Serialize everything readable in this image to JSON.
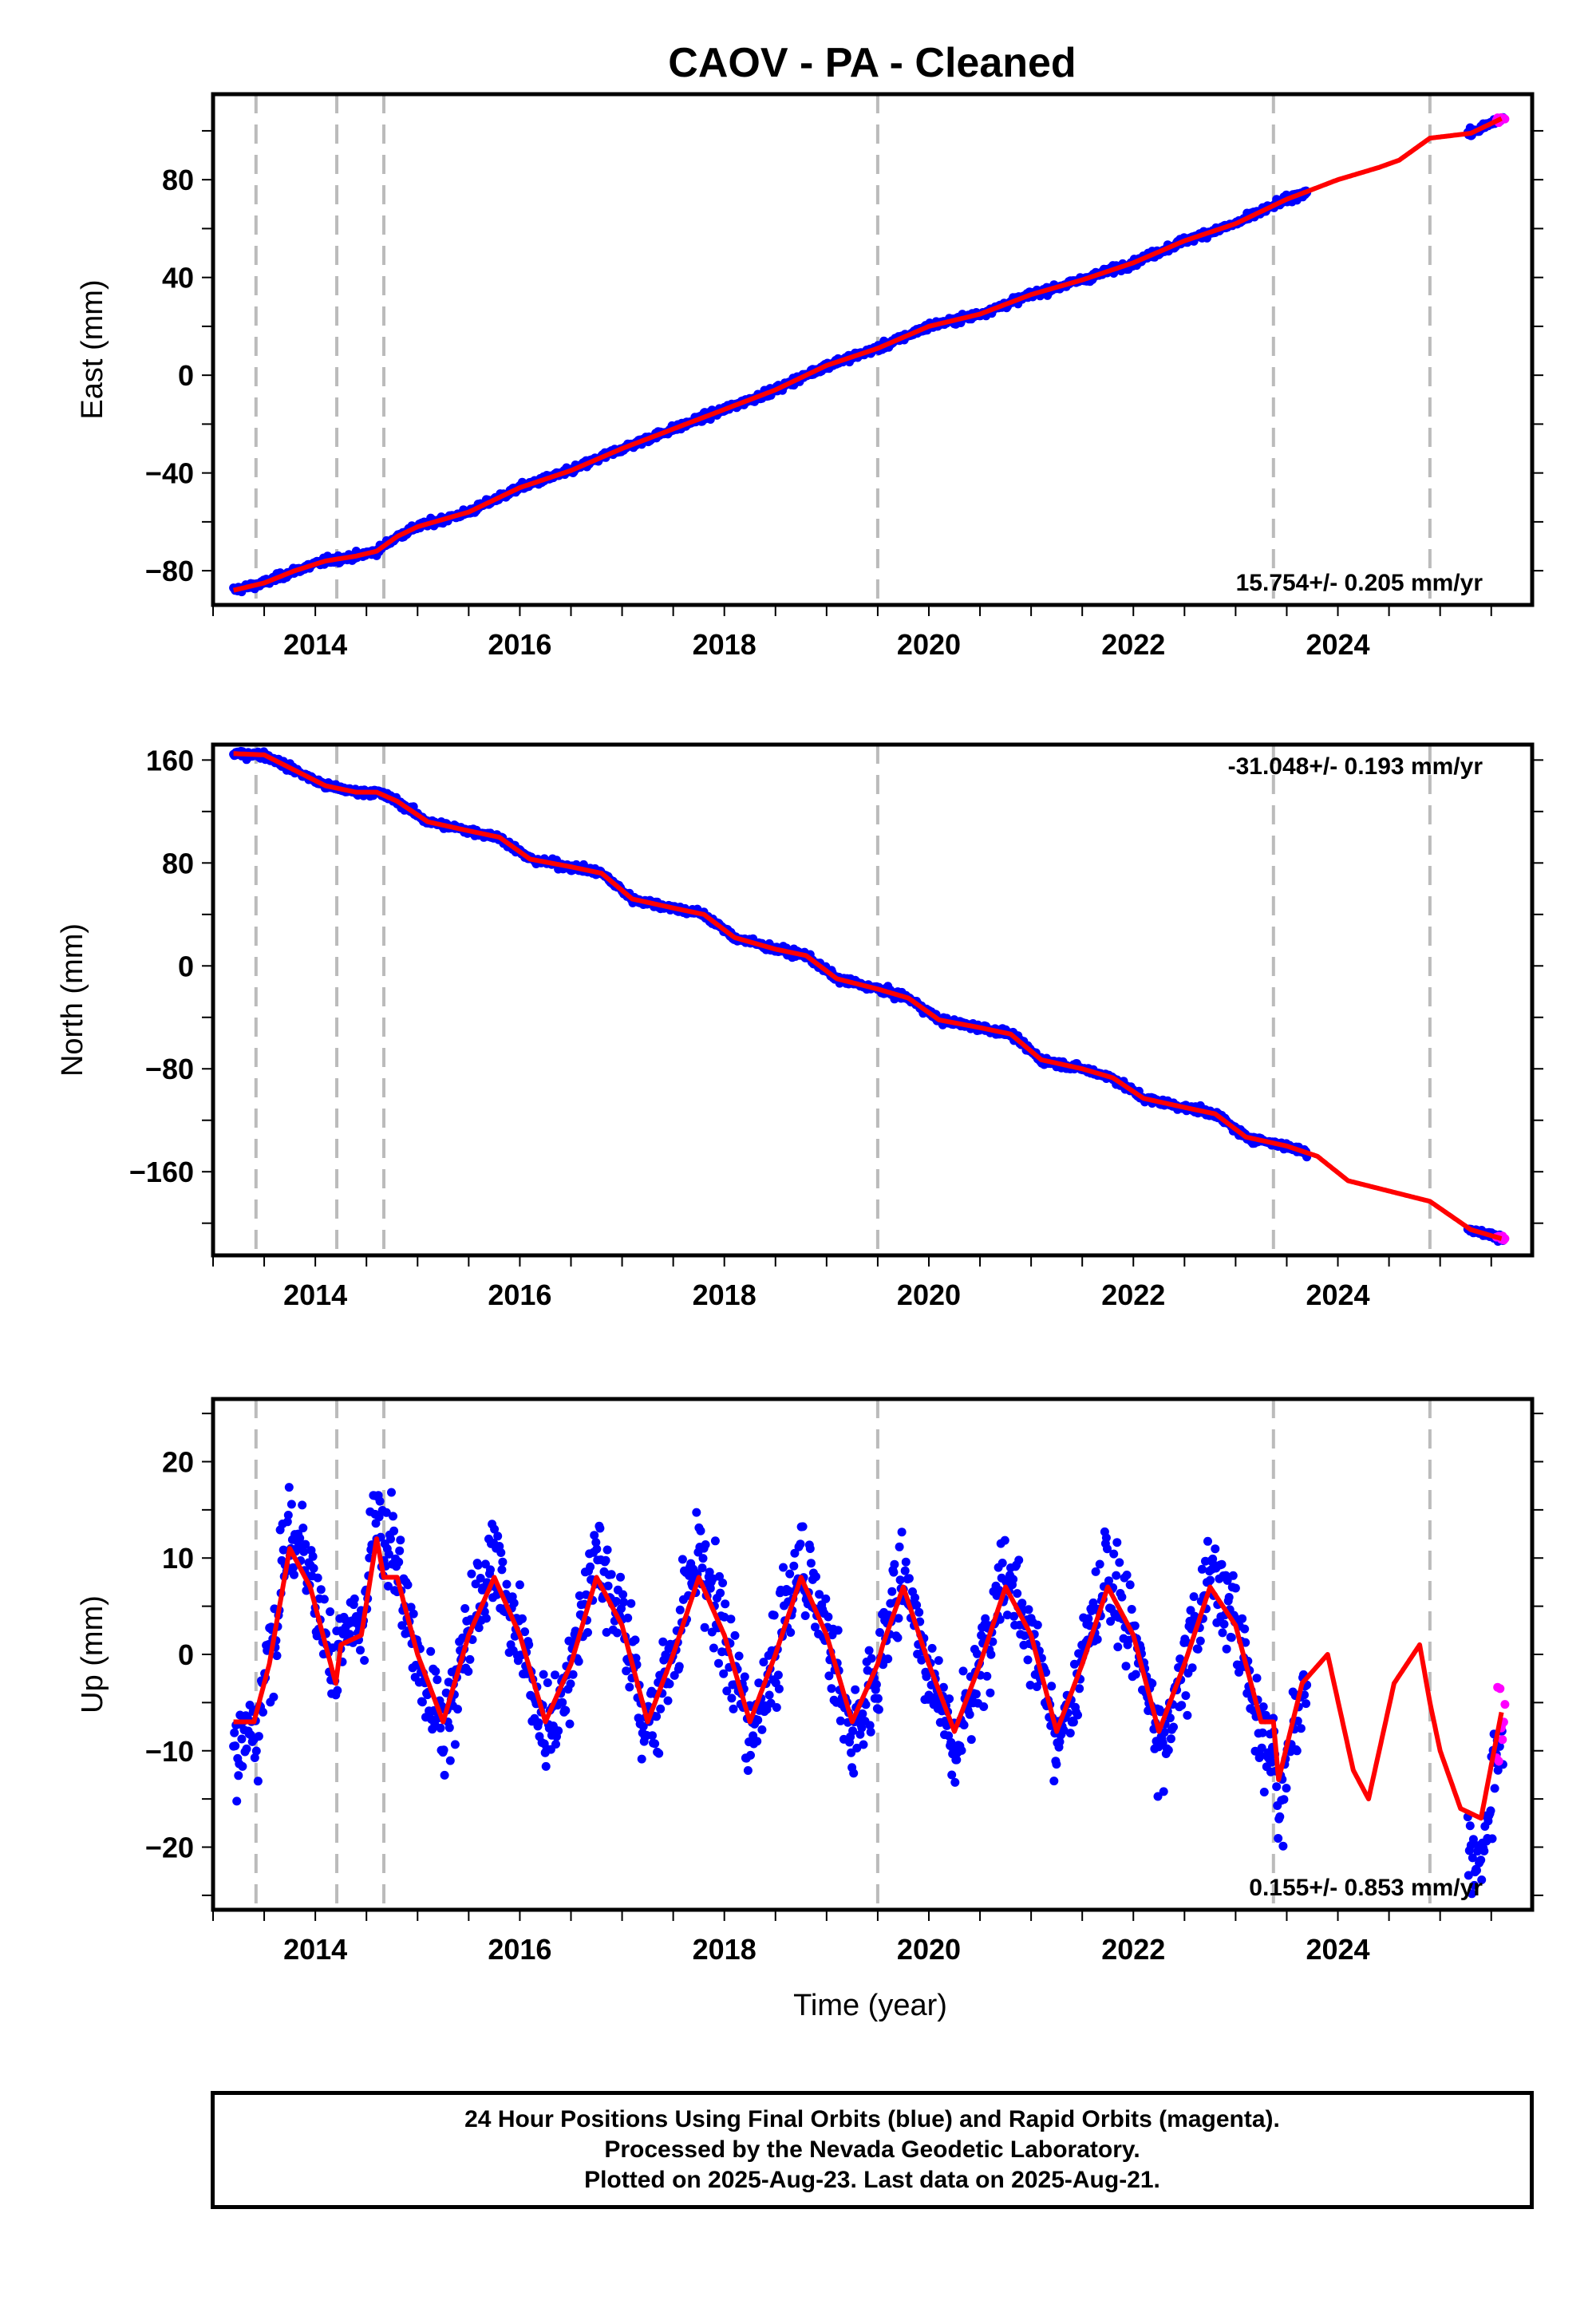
{
  "title": "CAOV  - PA - Cleaned",
  "footer": {
    "line1": "24 Hour Positions Using Final Orbits (blue) and Rapid Orbits (magenta).",
    "line2": "Processed by the Nevada Geodetic Laboratory.",
    "line3": "Plotted on 2025-Aug-23. Last data on 2025-Aug-21."
  },
  "colors": {
    "final_orbits": "#0000ff",
    "rapid_orbits": "#ff00ff",
    "model_fit": "#ff0000",
    "equipment_change_lines": "#bbbbbb"
  },
  "chart_data": [
    {
      "type": "scatter",
      "component": "East",
      "ylabel": "East (mm)",
      "xlabel": "",
      "xlim": [
        2013.0,
        2025.9
      ],
      "ylim": [
        -94,
        115
      ],
      "x_ticks": [
        2014,
        2016,
        2018,
        2020,
        2022,
        2024
      ],
      "y_ticks": [
        -80,
        -40,
        0,
        40,
        80
      ],
      "rate_label": "15.754+/- 0.205 mm/yr",
      "rate_position": "bottom-right",
      "equipment_changes": [
        2013.42,
        2014.21,
        2014.67,
        2019.5,
        2023.37,
        2024.9
      ],
      "final_orbits_range": [
        2013.2,
        2023.7
      ],
      "final_orbits_extra_range": [
        2025.27,
        2025.62
      ],
      "rapid_orbits_range": [
        2025.55,
        2025.64
      ],
      "fit_line": {
        "x": [
          2013.2,
          2013.5,
          2013.8,
          2014.1,
          2014.4,
          2014.6,
          2014.8,
          2015.0,
          2015.5,
          2016.0,
          2016.5,
          2017.0,
          2017.5,
          2018.0,
          2018.5,
          2019.0,
          2019.5,
          2020.0,
          2020.5,
          2021.0,
          2021.5,
          2022.0,
          2022.5,
          2023.0,
          2023.5,
          2024.0,
          2024.4,
          2024.6,
          2024.9,
          2025.3,
          2025.6
        ],
        "y": [
          -88,
          -85,
          -80,
          -76,
          -74,
          -72,
          -66,
          -62,
          -56,
          -46,
          -39,
          -30,
          -22,
          -14,
          -6,
          4,
          11,
          20,
          25,
          33,
          39,
          46,
          55,
          62,
          72,
          80,
          85,
          88,
          97,
          99,
          105
        ]
      }
    },
    {
      "type": "scatter",
      "component": "North",
      "ylabel": "North (mm)",
      "xlabel": "",
      "xlim": [
        2013.0,
        2025.9
      ],
      "ylim": [
        -225,
        172
      ],
      "x_ticks": [
        2014,
        2016,
        2018,
        2020,
        2022,
        2024
      ],
      "y_ticks": [
        -160,
        -80,
        0,
        80,
        160
      ],
      "rate_label": "-31.048+/- 0.193 mm/yr",
      "rate_position": "top-right",
      "equipment_changes": [
        2013.42,
        2014.21,
        2014.67,
        2019.5,
        2023.37,
        2024.9
      ],
      "final_orbits_range": [
        2013.2,
        2023.7
      ],
      "final_orbits_extra_range": [
        2025.27,
        2025.62
      ],
      "rapid_orbits_range": [
        2025.55,
        2025.64
      ],
      "fit_line": {
        "x": [
          2013.2,
          2013.5,
          2013.8,
          2014.1,
          2014.4,
          2014.6,
          2014.8,
          2015.1,
          2015.5,
          2015.8,
          2016.1,
          2016.5,
          2016.8,
          2017.1,
          2017.5,
          2017.8,
          2018.1,
          2018.5,
          2018.8,
          2019.1,
          2019.5,
          2019.8,
          2020.1,
          2020.5,
          2020.8,
          2021.1,
          2021.5,
          2021.8,
          2022.1,
          2022.5,
          2022.8,
          2023.1,
          2023.5,
          2023.8,
          2024.1,
          2024.5,
          2024.9,
          2025.3,
          2025.6
        ],
        "y": [
          165,
          164,
          152,
          140,
          135,
          135,
          128,
          112,
          105,
          100,
          83,
          77,
          72,
          52,
          45,
          40,
          22,
          13,
          8,
          -10,
          -18,
          -25,
          -42,
          -48,
          -53,
          -73,
          -80,
          -87,
          -103,
          -110,
          -115,
          -133,
          -140,
          -148,
          -167,
          -175,
          -183,
          -205,
          -212
        ]
      }
    },
    {
      "type": "scatter",
      "component": "Up",
      "ylabel": "Up (mm)",
      "xlabel": "Time (year)",
      "xlim": [
        2013.0,
        2025.9
      ],
      "ylim": [
        -26.5,
        26.5
      ],
      "x_ticks": [
        2014,
        2016,
        2018,
        2020,
        2022,
        2024
      ],
      "y_ticks": [
        -20,
        -10,
        0,
        10,
        20
      ],
      "rate_label": "0.155+/- 0.853 mm/yr",
      "rate_position": "bottom-right",
      "equipment_changes": [
        2013.42,
        2014.21,
        2014.67,
        2019.5,
        2023.37,
        2024.9
      ],
      "final_orbits_range": [
        2013.2,
        2023.7
      ],
      "final_orbits_extra_range": [
        2025.27,
        2025.62
      ],
      "rapid_orbits_range": [
        2025.55,
        2025.64
      ],
      "fit_line": {
        "x": [
          2013.2,
          2013.4,
          2013.55,
          2013.75,
          2013.95,
          2014.2,
          2014.25,
          2014.45,
          2014.6,
          2014.67,
          2014.8,
          2015.0,
          2015.25,
          2015.5,
          2015.75,
          2016.0,
          2016.25,
          2016.5,
          2016.75,
          2017.0,
          2017.25,
          2017.5,
          2017.75,
          2018.0,
          2018.25,
          2018.5,
          2018.75,
          2019.0,
          2019.25,
          2019.5,
          2019.55,
          2019.75,
          2020.0,
          2020.25,
          2020.5,
          2020.75,
          2021.0,
          2021.25,
          2021.5,
          2021.75,
          2022.0,
          2022.25,
          2022.5,
          2022.75,
          2023.0,
          2023.25,
          2023.37,
          2023.42,
          2023.65,
          2023.9,
          2024.15,
          2024.3,
          2024.55,
          2024.8,
          2024.9,
          2025.0,
          2025.2,
          2025.4,
          2025.6
        ],
        "y": [
          -7,
          -7,
          -1,
          11,
          7,
          -3,
          1,
          2,
          12,
          8,
          8,
          0,
          -7,
          2,
          8,
          2,
          -7,
          -1,
          8,
          3,
          -7,
          0,
          8,
          2,
          -7,
          0,
          8,
          2,
          -7,
          -1,
          1,
          7,
          -1,
          -8,
          -1,
          7,
          2,
          -8,
          -1,
          7,
          2,
          -8,
          -1,
          7,
          3,
          -7,
          -7,
          -13,
          -3,
          0,
          -12,
          -15,
          -3,
          1,
          -5,
          -10,
          -16,
          -17,
          -6
        ]
      }
    }
  ]
}
